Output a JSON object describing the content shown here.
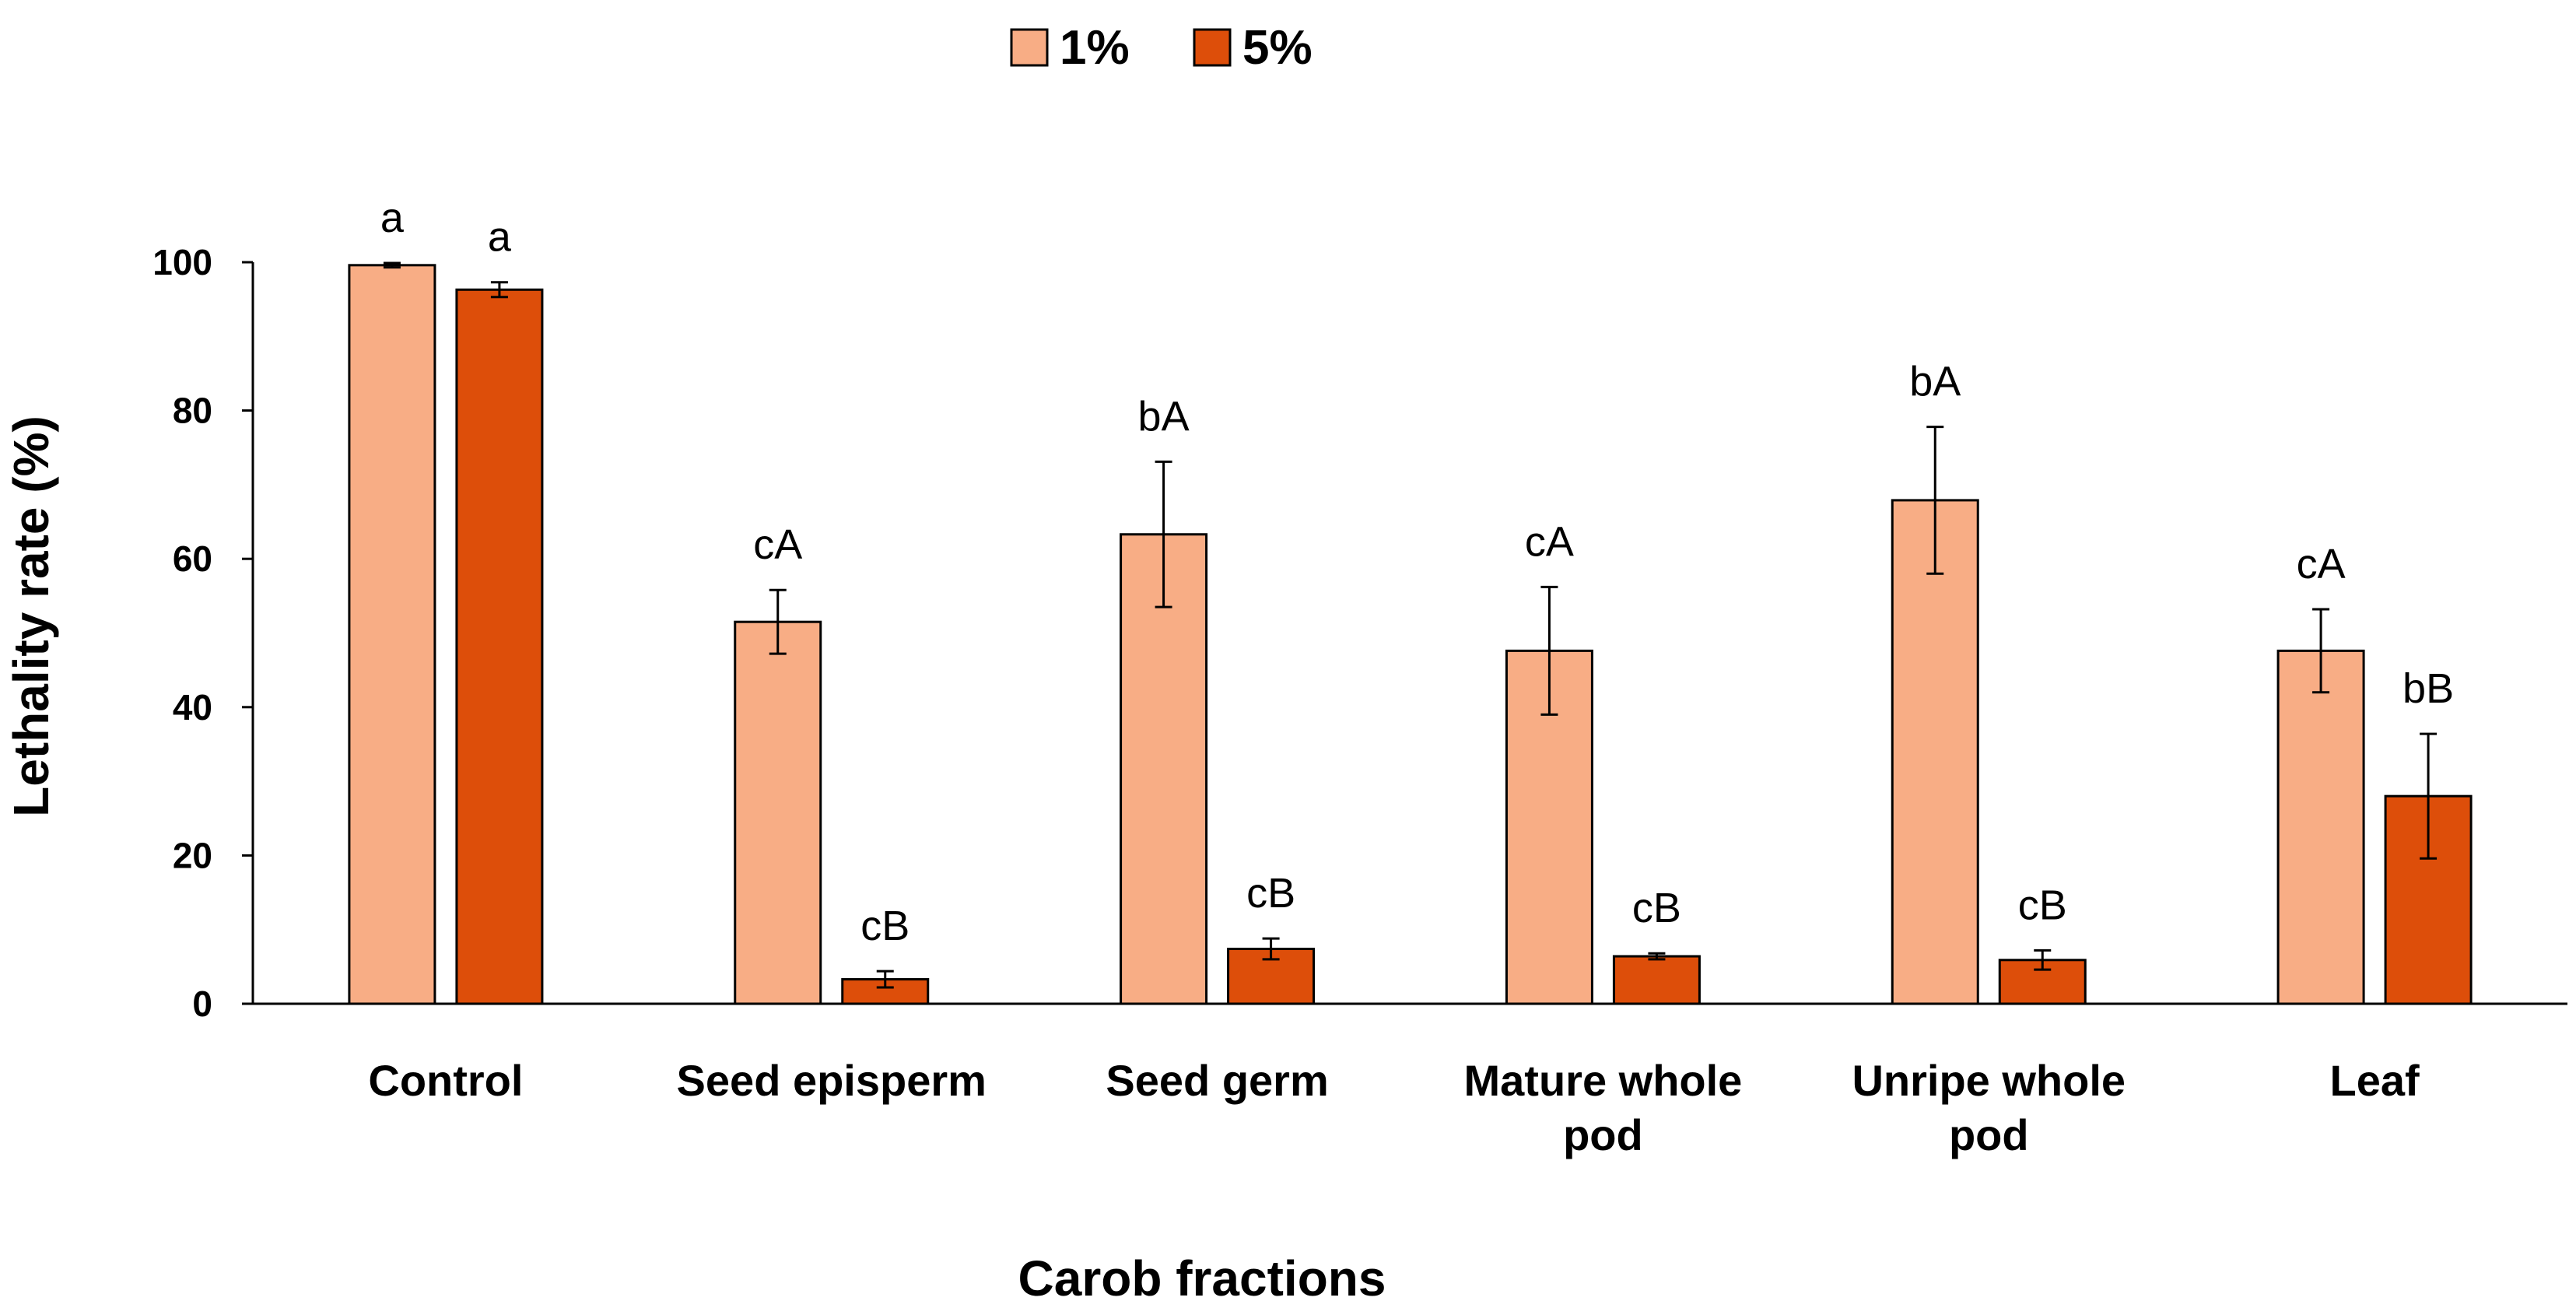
{
  "chart_data": {
    "type": "bar",
    "title": "",
    "xlabel": "Carob fractions",
    "ylabel": "Lethality rate (%)",
    "ylim": [
      0,
      100
    ],
    "yticks": [
      0,
      20,
      40,
      60,
      80,
      100
    ],
    "grid": false,
    "legend_position": "top-center",
    "categories": [
      [
        "Control"
      ],
      [
        "Seed episperm"
      ],
      [
        "Seed germ"
      ],
      [
        "Mature whole",
        "pod"
      ],
      [
        "Unripe whole",
        "pod"
      ],
      [
        "Leaf"
      ]
    ],
    "series": [
      {
        "name": "1%",
        "color": "#F8AD85",
        "values": [
          99.6,
          51.5,
          63.3,
          47.6,
          67.9,
          47.6
        ],
        "errors": [
          0.3,
          4.3,
          9.8,
          8.6,
          9.9,
          5.6
        ],
        "labels": [
          "a",
          "cA",
          "bA",
          "cA",
          "bA",
          "cA"
        ]
      },
      {
        "name": "5%",
        "color": "#DD4E0A",
        "values": [
          96.3,
          3.3,
          7.4,
          6.4,
          5.9,
          28.0
        ],
        "errors": [
          1.0,
          1.1,
          1.4,
          0.4,
          1.3,
          8.4
        ],
        "labels": [
          "a",
          "cB",
          "cB",
          "cB",
          "cB",
          "bB"
        ]
      }
    ]
  }
}
